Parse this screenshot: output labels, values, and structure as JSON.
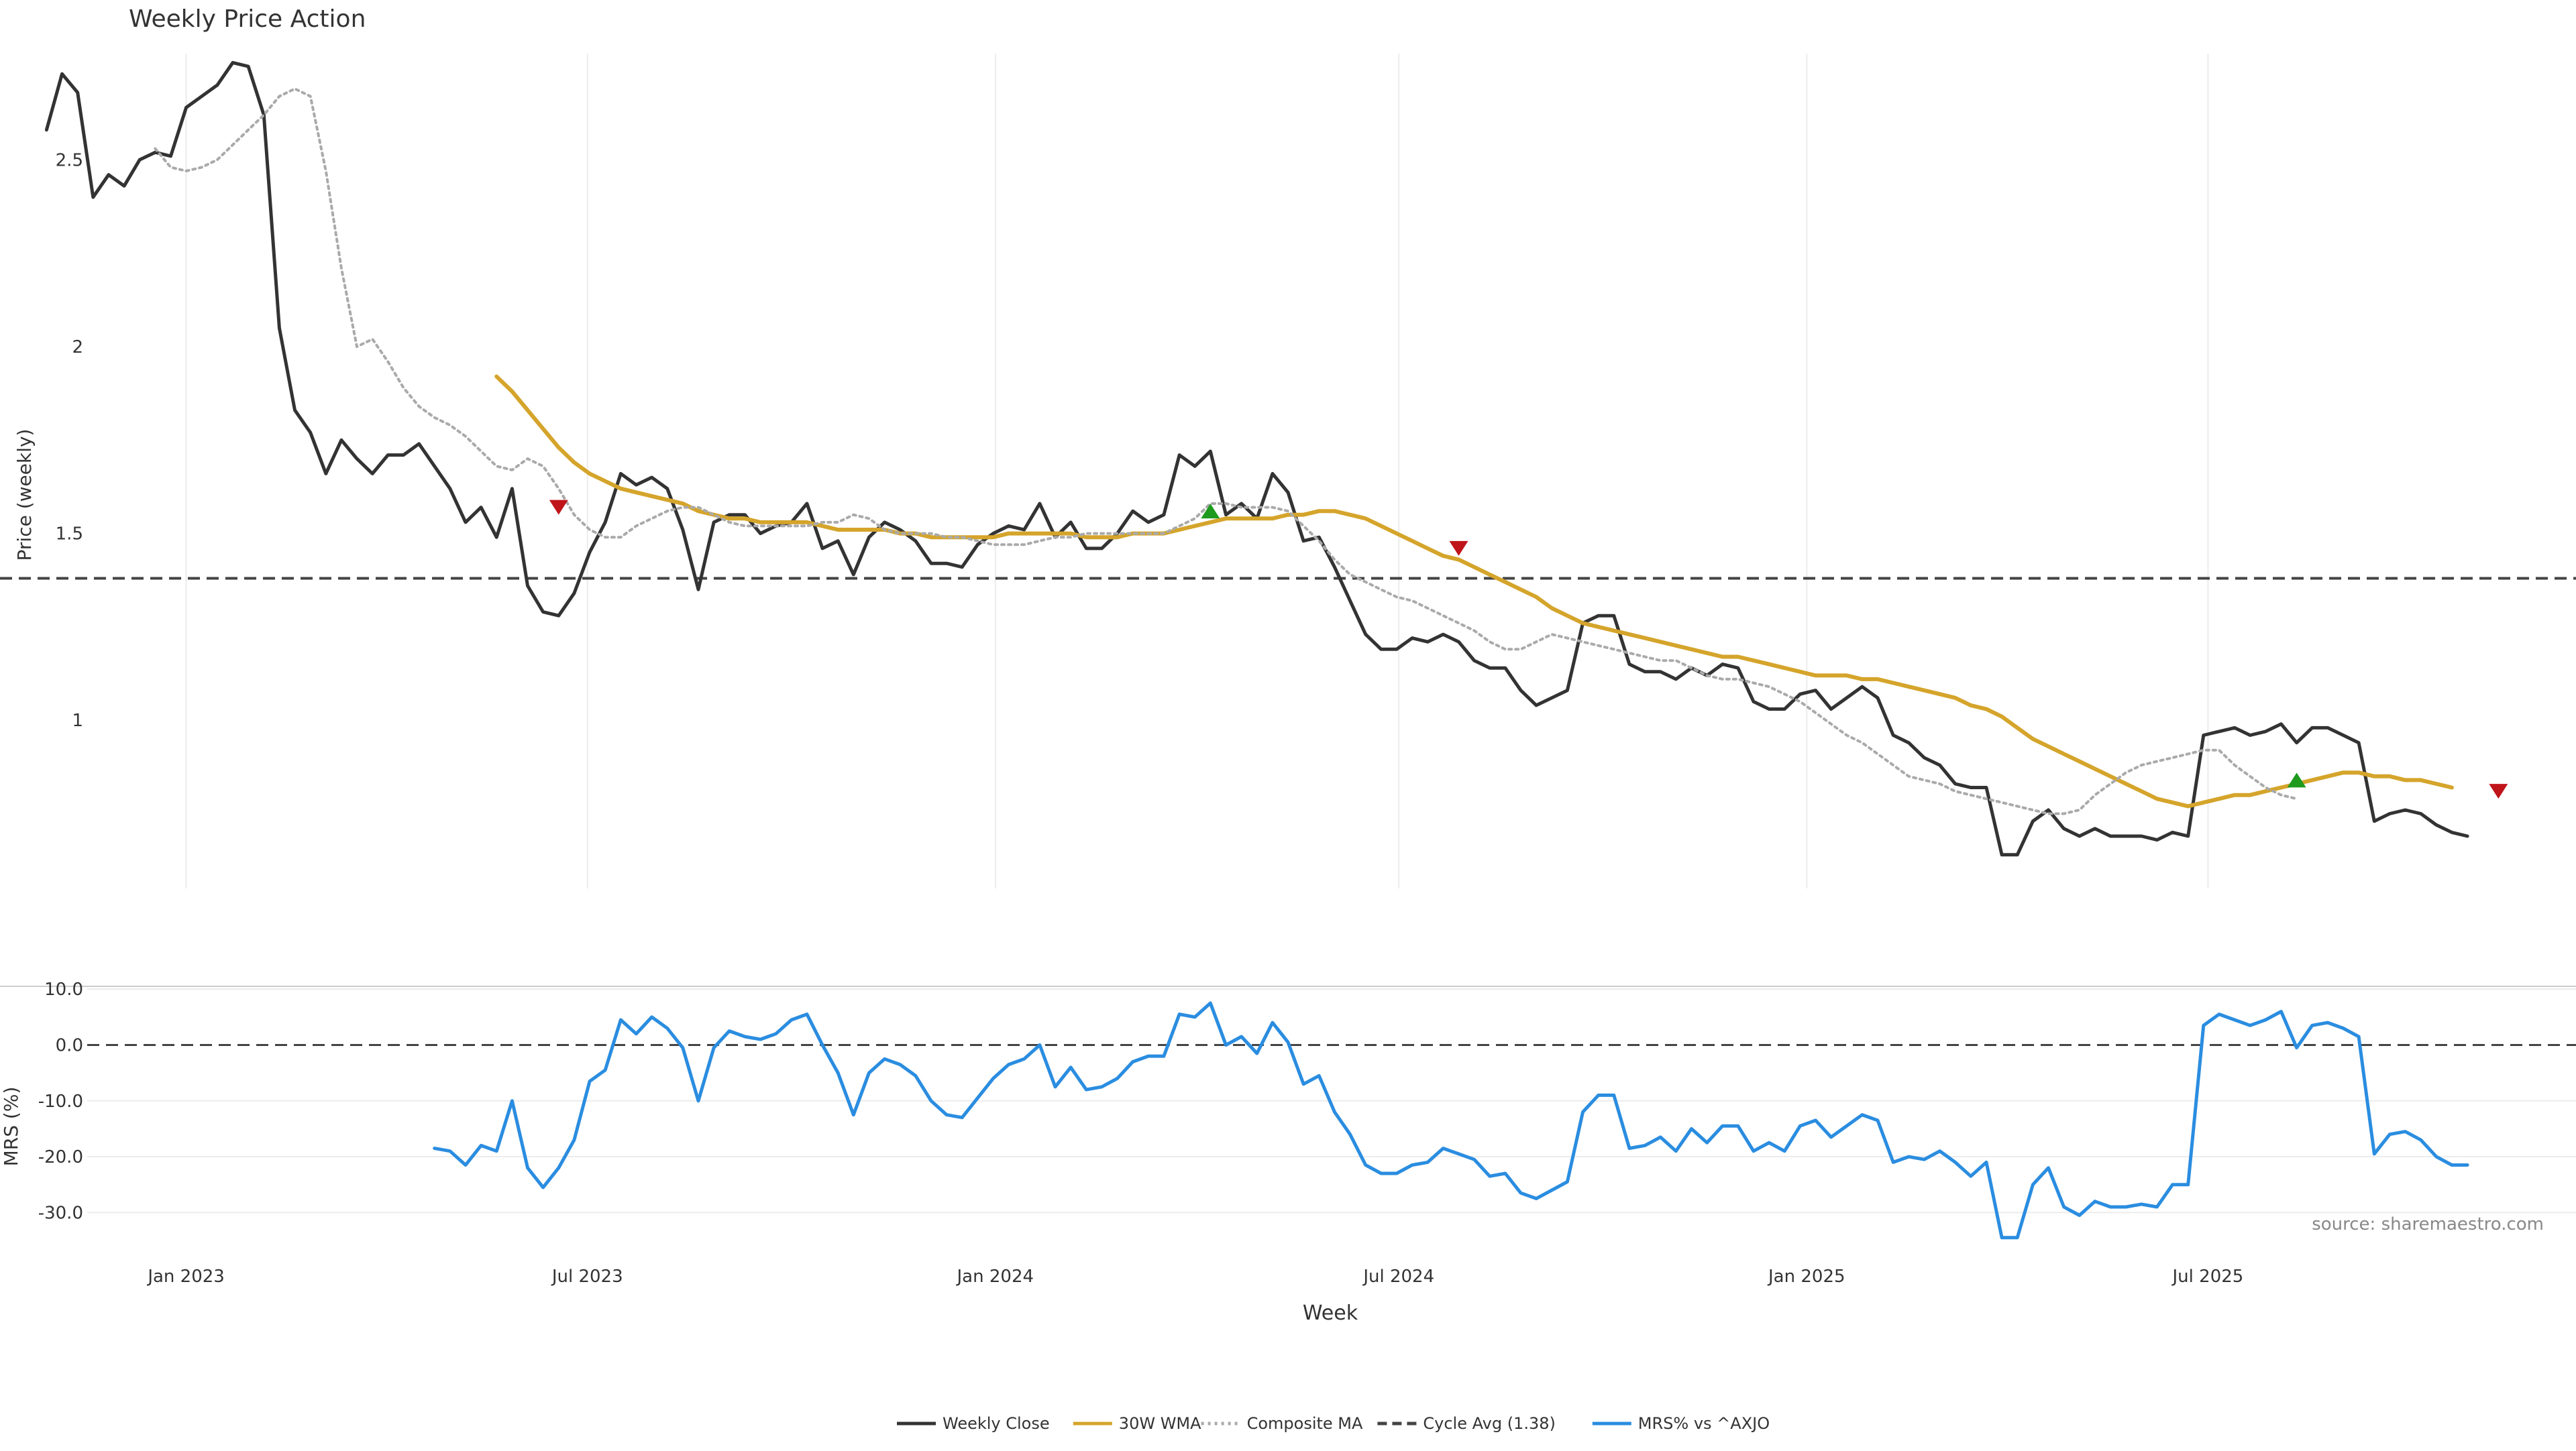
{
  "chart_data": {
    "type": "line",
    "title": "Weekly Price Action",
    "xlabel": "Week",
    "source": "source: sharemaestro.com",
    "x_ticks": [
      "Jan 2023",
      "Jul 2023",
      "Jan 2024",
      "Jul 2024",
      "Jan 2025",
      "Jul 2025"
    ],
    "x_range": [
      "2022-10-09",
      "2025-12-14"
    ],
    "price_panel": {
      "ylabel": "Price (weekly)",
      "ylim": [
        0.55,
        2.82
      ],
      "y_ticks": [
        "1",
        "1.5",
        "2",
        "2.5"
      ],
      "y_tick_values": [
        1,
        1.5,
        2,
        2.5
      ],
      "grid": "x",
      "series": [
        {
          "name": "Weekly Close",
          "color": "#333333",
          "style": "solid",
          "x_start": "2022-10-30",
          "step_days": 7,
          "values": [
            2.58,
            2.73,
            2.68,
            2.4,
            2.46,
            2.43,
            2.5,
            2.52,
            2.51,
            2.64,
            2.67,
            2.7,
            2.76,
            2.75,
            2.62,
            2.05,
            1.83,
            1.77,
            1.66,
            1.75,
            1.7,
            1.66,
            1.71,
            1.71,
            1.74,
            1.68,
            1.62,
            1.53,
            1.57,
            1.49,
            1.62,
            1.36,
            1.29,
            1.28,
            1.34,
            1.45,
            1.53,
            1.66,
            1.63,
            1.65,
            1.62,
            1.51,
            1.35,
            1.53,
            1.55,
            1.55,
            1.5,
            1.52,
            1.53,
            1.58,
            1.46,
            1.48,
            1.39,
            1.49,
            1.53,
            1.51,
            1.48,
            1.42,
            1.42,
            1.41,
            1.47,
            1.5,
            1.52,
            1.51,
            1.58,
            1.49,
            1.53,
            1.46,
            1.46,
            1.5,
            1.56,
            1.53,
            1.55,
            1.71,
            1.68,
            1.72,
            1.55,
            1.58,
            1.54,
            1.66,
            1.61,
            1.48,
            1.49,
            1.41,
            1.32,
            1.23,
            1.19,
            1.19,
            1.22,
            1.21,
            1.23,
            1.21,
            1.16,
            1.14,
            1.14,
            1.08,
            1.04,
            1.06,
            1.08,
            1.26,
            1.28,
            1.28,
            1.15,
            1.13,
            1.13,
            1.11,
            1.14,
            1.12,
            1.15,
            1.14,
            1.05,
            1.03,
            1.03,
            1.07,
            1.08,
            1.03,
            1.06,
            1.09,
            1.06,
            0.96,
            0.94,
            0.9,
            0.88,
            0.83,
            0.82,
            0.82,
            0.64,
            0.64,
            0.73,
            0.76,
            0.71,
            0.69,
            0.71,
            0.69,
            0.69,
            0.69,
            0.68,
            0.7,
            0.69,
            0.96,
            0.97,
            0.98,
            0.96,
            0.97,
            0.99,
            0.94,
            0.98,
            0.98,
            0.96,
            0.94,
            0.73,
            0.75,
            0.76,
            0.75,
            0.72,
            0.7,
            0.69
          ]
        },
        {
          "name": "30W WMA",
          "color": "#D4A52A",
          "style": "solid",
          "x_start": "2023-05-21",
          "step_days": 7,
          "values": [
            1.92,
            1.88,
            1.83,
            1.78,
            1.73,
            1.69,
            1.66,
            1.64,
            1.62,
            1.61,
            1.6,
            1.59,
            1.58,
            1.56,
            1.55,
            1.54,
            1.54,
            1.53,
            1.53,
            1.53,
            1.53,
            1.52,
            1.51,
            1.51,
            1.51,
            1.51,
            1.5,
            1.5,
            1.49,
            1.49,
            1.49,
            1.49,
            1.49,
            1.5,
            1.5,
            1.5,
            1.5,
            1.5,
            1.49,
            1.49,
            1.49,
            1.5,
            1.5,
            1.5,
            1.51,
            1.52,
            1.53,
            1.54,
            1.54,
            1.54,
            1.54,
            1.55,
            1.55,
            1.56,
            1.56,
            1.55,
            1.54,
            1.52,
            1.5,
            1.48,
            1.46,
            1.44,
            1.43,
            1.41,
            1.39,
            1.37,
            1.35,
            1.33,
            1.3,
            1.28,
            1.26,
            1.25,
            1.24,
            1.23,
            1.22,
            1.21,
            1.2,
            1.19,
            1.18,
            1.17,
            1.17,
            1.16,
            1.15,
            1.14,
            1.13,
            1.12,
            1.12,
            1.12,
            1.11,
            1.11,
            1.1,
            1.09,
            1.08,
            1.07,
            1.06,
            1.04,
            1.03,
            1.01,
            0.98,
            0.95,
            0.93,
            0.91,
            0.89,
            0.87,
            0.85,
            0.83,
            0.81,
            0.79,
            0.78,
            0.77,
            0.78,
            0.79,
            0.8,
            0.8,
            0.81,
            0.82,
            0.83,
            0.84,
            0.85,
            0.86,
            0.86,
            0.85,
            0.85,
            0.84,
            0.84,
            0.83,
            0.82
          ]
        },
        {
          "name": "Composite MA",
          "color": "#AAAAAA",
          "style": "dotted",
          "x_start": "2022-12-18",
          "step_days": 7,
          "values": [
            2.53,
            2.48,
            2.47,
            2.48,
            2.5,
            2.54,
            2.58,
            2.62,
            2.67,
            2.69,
            2.67,
            2.47,
            2.21,
            2.0,
            2.02,
            1.96,
            1.89,
            1.84,
            1.81,
            1.79,
            1.76,
            1.72,
            1.68,
            1.67,
            1.7,
            1.68,
            1.62,
            1.55,
            1.51,
            1.49,
            1.49,
            1.52,
            1.54,
            1.56,
            1.57,
            1.57,
            1.55,
            1.53,
            1.52,
            1.52,
            1.52,
            1.52,
            1.52,
            1.53,
            1.53,
            1.55,
            1.54,
            1.51,
            1.5,
            1.5,
            1.5,
            1.49,
            1.49,
            1.48,
            1.47,
            1.47,
            1.47,
            1.48,
            1.49,
            1.49,
            1.5,
            1.5,
            1.5,
            1.5,
            1.5,
            1.5,
            1.52,
            1.54,
            1.58,
            1.58,
            1.57,
            1.57,
            1.57,
            1.56,
            1.52,
            1.48,
            1.43,
            1.39,
            1.37,
            1.35,
            1.33,
            1.32,
            1.3,
            1.28,
            1.26,
            1.24,
            1.21,
            1.19,
            1.19,
            1.21,
            1.23,
            1.22,
            1.21,
            1.2,
            1.19,
            1.18,
            1.17,
            1.16,
            1.16,
            1.14,
            1.12,
            1.11,
            1.11,
            1.1,
            1.09,
            1.07,
            1.05,
            1.02,
            0.99,
            0.96,
            0.94,
            0.91,
            0.88,
            0.85,
            0.84,
            0.83,
            0.81,
            0.8,
            0.79,
            0.78,
            0.77,
            0.76,
            0.75,
            0.75,
            0.76,
            0.8,
            0.83,
            0.86,
            0.88,
            0.89,
            0.9,
            0.91,
            0.92,
            0.92,
            0.88,
            0.85,
            0.82,
            0.8,
            0.79
          ]
        }
      ],
      "reference_lines": [
        {
          "name": "Cycle Avg (1.38)",
          "value": 1.38,
          "color": "#444444",
          "style": "dashed"
        }
      ],
      "markers": [
        {
          "type": "sell",
          "x": "2023-06-18",
          "y": 1.57,
          "color": "#C0141B"
        },
        {
          "type": "buy",
          "x": "2024-04-07",
          "y": 1.56,
          "color": "#1E9A1E"
        },
        {
          "type": "sell",
          "x": "2024-07-28",
          "y": 1.46,
          "color": "#C0141B"
        },
        {
          "type": "buy",
          "x": "2025-08-10",
          "y": 0.84,
          "color": "#1E9A1E"
        },
        {
          "type": "sell",
          "x": "2025-11-09",
          "y": 0.81,
          "color": "#C0141B"
        }
      ]
    },
    "mrs_panel": {
      "ylabel": "MRS (%)",
      "ylim": [
        -35,
        10.5
      ],
      "y_ticks": [
        "10.0",
        "0.0",
        "-10.0",
        "-20.0",
        "-30.0"
      ],
      "y_tick_values": [
        10,
        0,
        -10,
        -20,
        -30
      ],
      "grid": "y",
      "series": [
        {
          "name": "MRS% vs ^AXJO",
          "color": "#2B8DE0",
          "style": "solid",
          "x_start": "2023-04-23",
          "step_days": 7,
          "values": [
            -18.5,
            -19,
            -21.5,
            -18,
            -19,
            -10,
            -22,
            -25.5,
            -22,
            -17,
            -6.5,
            -4.5,
            4.5,
            2,
            5,
            3,
            -0.5,
            -10,
            -0.5,
            2.5,
            1.5,
            1,
            2,
            4.5,
            5.5,
            0,
            -5,
            -12.5,
            -5,
            -2.5,
            -3.5,
            -5.5,
            -10,
            -12.5,
            -13,
            -9.5,
            -6,
            -3.5,
            -2.5,
            0,
            -7.5,
            -4,
            -8,
            -7.5,
            -6,
            -3,
            -2,
            -2,
            5.5,
            5,
            7.5,
            0,
            1.5,
            -1.5,
            4,
            0.5,
            -7,
            -5.5,
            -12,
            -16,
            -21.5,
            -23,
            -23,
            -21.5,
            -21,
            -18.5,
            -19.5,
            -20.5,
            -23.5,
            -23,
            -26.5,
            -27.5,
            -26,
            -24.5,
            -12,
            -9,
            -9,
            -18.5,
            -18,
            -16.5,
            -19,
            -15,
            -17.5,
            -14.5,
            -14.5,
            -19,
            -17.5,
            -19,
            -14.5,
            -13.5,
            -16.5,
            -14.5,
            -12.5,
            -13.5,
            -21,
            -20,
            -20.5,
            -19,
            -21,
            -23.5,
            -21,
            -34.5,
            -34.5,
            -25,
            -22,
            -29,
            -30.5,
            -28,
            -29,
            -29,
            -28.5,
            -29,
            -25,
            -25,
            3.5,
            5.5,
            4.5,
            3.5,
            4.5,
            6,
            -0.5,
            3.5,
            4,
            3,
            1.5,
            -19.5,
            -16,
            -15.5,
            -17,
            -20,
            -21.5,
            -21.5
          ]
        }
      ],
      "reference_lines": [
        {
          "name": "zero",
          "value": 0,
          "color": "#444444",
          "style": "dashed"
        }
      ]
    },
    "legend": {
      "placement": "bottom-center",
      "entries": [
        {
          "label": "Weekly Close",
          "color": "#333333",
          "style": "solid"
        },
        {
          "label": "30W WMA",
          "color": "#D4A52A",
          "style": "solid"
        },
        {
          "label": "Composite MA",
          "color": "#AAAAAA",
          "style": "dotted"
        },
        {
          "label": "Cycle Avg (1.38)",
          "color": "#444444",
          "style": "dashed"
        },
        {
          "label": "MRS% vs ^AXJO",
          "color": "#2B8DE0",
          "style": "solid"
        }
      ]
    }
  }
}
